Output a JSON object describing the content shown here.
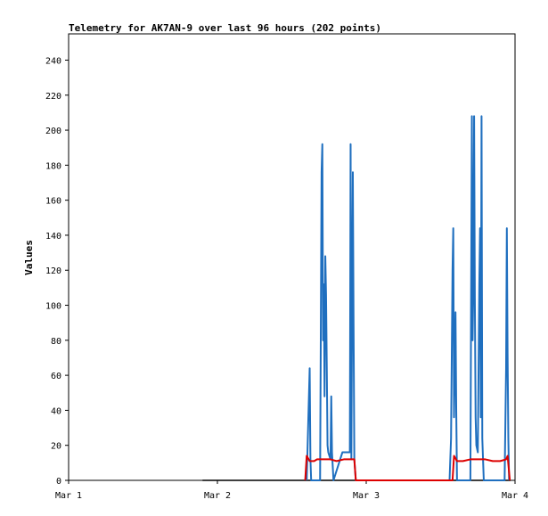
{
  "chart_data": {
    "type": "line",
    "title": "Telemetry for AK7AN-9 over last 96 hours (202 points)",
    "ylabel": "Values",
    "xlabel": "",
    "xlim": [
      0,
      3
    ],
    "ylim": [
      0,
      255
    ],
    "x_ticks": [
      {
        "x": 0,
        "label": "Mar 1"
      },
      {
        "x": 1,
        "label": "Mar 2"
      },
      {
        "x": 2,
        "label": "Mar 3"
      },
      {
        "x": 3,
        "label": "Mar 4"
      }
    ],
    "y_ticks": [
      0,
      20,
      40,
      60,
      80,
      100,
      120,
      140,
      160,
      180,
      200,
      220,
      240
    ],
    "grid": false,
    "legend": "none",
    "series": [
      {
        "color": "#000000",
        "values": [
          [
            0.9,
            0
          ],
          [
            2.97,
            0
          ]
        ]
      },
      {
        "color": "#1f6fbf",
        "values": [
          [
            1.6,
            0
          ],
          [
            1.61,
            32
          ],
          [
            1.62,
            64
          ],
          [
            1.625,
            12
          ],
          [
            1.63,
            0
          ],
          [
            1.67,
            0
          ],
          [
            1.69,
            0
          ],
          [
            1.7,
            176
          ],
          [
            1.705,
            192
          ],
          [
            1.71,
            80
          ],
          [
            1.715,
            112
          ],
          [
            1.72,
            48
          ],
          [
            1.725,
            128
          ],
          [
            1.73,
            106
          ],
          [
            1.735,
            64
          ],
          [
            1.74,
            20
          ],
          [
            1.745,
            16
          ],
          [
            1.76,
            12
          ],
          [
            1.765,
            48
          ],
          [
            1.77,
            16
          ],
          [
            1.78,
            0
          ],
          [
            1.84,
            16
          ],
          [
            1.89,
            16
          ],
          [
            1.895,
            192
          ],
          [
            1.9,
            12
          ],
          [
            1.91,
            176
          ],
          [
            1.915,
            88
          ],
          [
            1.92,
            12
          ],
          [
            1.93,
            0
          ],
          [
            2.56,
            0
          ],
          [
            2.57,
            24
          ],
          [
            2.575,
            72
          ],
          [
            2.58,
            120
          ],
          [
            2.585,
            144
          ],
          [
            2.59,
            36
          ],
          [
            2.6,
            96
          ],
          [
            2.605,
            40
          ],
          [
            2.61,
            0
          ],
          [
            2.7,
            0
          ],
          [
            2.71,
            208
          ],
          [
            2.715,
            80
          ],
          [
            2.72,
            112
          ],
          [
            2.725,
            208
          ],
          [
            2.73,
            104
          ],
          [
            2.735,
            36
          ],
          [
            2.74,
            20
          ],
          [
            2.75,
            16
          ],
          [
            2.76,
            112
          ],
          [
            2.765,
            144
          ],
          [
            2.77,
            36
          ],
          [
            2.775,
            208
          ],
          [
            2.78,
            24
          ],
          [
            2.79,
            0
          ],
          [
            2.93,
            0
          ],
          [
            2.94,
            64
          ],
          [
            2.945,
            144
          ],
          [
            2.95,
            72
          ],
          [
            2.955,
            24
          ],
          [
            2.96,
            0
          ]
        ]
      },
      {
        "color": "#dd0000",
        "values": [
          [
            1.59,
            0
          ],
          [
            1.6,
            14
          ],
          [
            1.62,
            11
          ],
          [
            1.65,
            11
          ],
          [
            1.67,
            12
          ],
          [
            1.7,
            12
          ],
          [
            1.73,
            12
          ],
          [
            1.76,
            12
          ],
          [
            1.8,
            11
          ],
          [
            1.85,
            12
          ],
          [
            1.89,
            12
          ],
          [
            1.92,
            12
          ],
          [
            1.93,
            0
          ],
          [
            2.58,
            0
          ],
          [
            2.59,
            14
          ],
          [
            2.61,
            11
          ],
          [
            2.65,
            11
          ],
          [
            2.7,
            12
          ],
          [
            2.75,
            12
          ],
          [
            2.8,
            12
          ],
          [
            2.85,
            11
          ],
          [
            2.9,
            11
          ],
          [
            2.94,
            12
          ],
          [
            2.95,
            14
          ],
          [
            2.965,
            0
          ]
        ]
      }
    ]
  }
}
